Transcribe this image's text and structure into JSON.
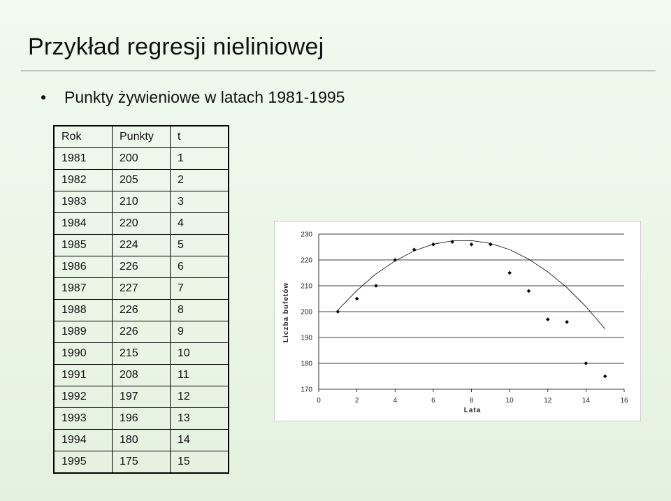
{
  "slide": {
    "title": "Przykład regresji nieliniowej",
    "bullet": "Punkty żywieniowe w latach 1981-1995"
  },
  "table": {
    "headers": [
      "Rok",
      "Punkty",
      "t"
    ],
    "rows": [
      [
        "1981",
        "200",
        "1"
      ],
      [
        "1982",
        "205",
        "2"
      ],
      [
        "1983",
        "210",
        "3"
      ],
      [
        "1984",
        "220",
        "4"
      ],
      [
        "1985",
        "224",
        "5"
      ],
      [
        "1986",
        "226",
        "6"
      ],
      [
        "1987",
        "227",
        "7"
      ],
      [
        "1988",
        "226",
        "8"
      ],
      [
        "1989",
        "226",
        "9"
      ],
      [
        "1990",
        "215",
        "10"
      ],
      [
        "1991",
        "208",
        "11"
      ],
      [
        "1992",
        "197",
        "12"
      ],
      [
        "1993",
        "196",
        "13"
      ],
      [
        "1994",
        "180",
        "14"
      ],
      [
        "1995",
        "175",
        "15"
      ]
    ]
  },
  "chart_data": {
    "type": "scatter",
    "xlabel": "Lata",
    "ylabel": "Liczba bufetów",
    "xlim": [
      0,
      16
    ],
    "ylim": [
      170,
      230
    ],
    "xticks": [
      0,
      2,
      4,
      6,
      8,
      10,
      12,
      14,
      16
    ],
    "yticks": [
      170,
      180,
      190,
      200,
      210,
      220,
      230
    ],
    "grid": "horizontal",
    "x": [
      1,
      2,
      3,
      4,
      5,
      6,
      7,
      8,
      9,
      10,
      11,
      12,
      13,
      14,
      15
    ],
    "y": [
      200,
      205,
      210,
      220,
      224,
      226,
      227,
      226,
      226,
      215,
      208,
      197,
      196,
      180,
      175
    ],
    "trend": {
      "type": "quadratic fit",
      "x": [
        1,
        2,
        3,
        4,
        5,
        6,
        7,
        8,
        9,
        10,
        11,
        12,
        13,
        14,
        15
      ],
      "y": [
        200.6,
        208.2,
        214.6,
        219.6,
        223.5,
        226.1,
        227.4,
        227.5,
        226.4,
        224.0,
        220.3,
        215.4,
        209.3,
        201.9,
        193.3
      ]
    },
    "marker_color": "#000000",
    "line_color": "#000000"
  }
}
